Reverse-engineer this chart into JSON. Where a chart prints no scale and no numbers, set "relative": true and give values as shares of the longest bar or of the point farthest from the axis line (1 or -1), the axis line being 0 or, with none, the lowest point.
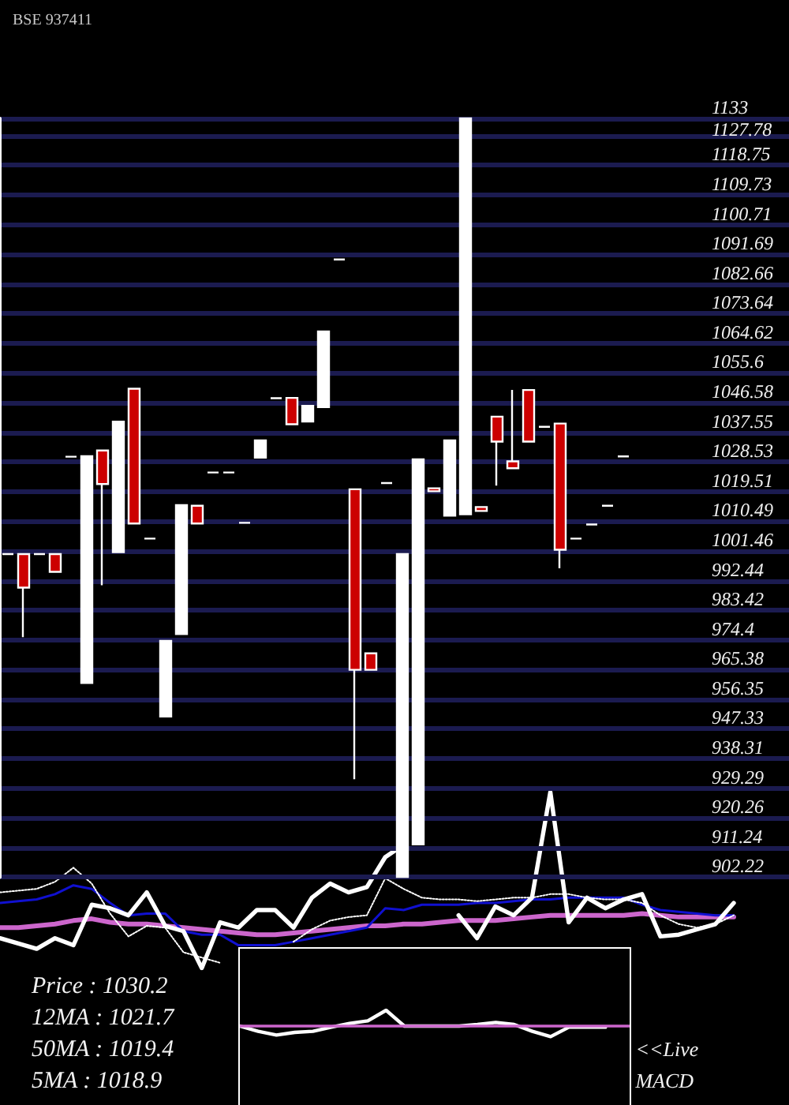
{
  "chart_data": [
    {
      "type": "candlestick",
      "title": "BSE 937411",
      "categories": [
        null,
        null,
        null,
        null,
        null,
        null,
        null,
        null,
        null,
        null,
        null,
        null,
        null,
        null,
        null,
        null,
        null,
        null,
        null,
        null,
        null,
        null,
        null,
        null,
        null,
        null,
        null,
        null,
        null,
        null,
        null,
        null,
        null,
        null,
        null,
        null,
        null,
        null,
        null,
        null,
        null,
        null,
        null,
        null,
        null,
        null,
        null,
        null,
        null,
        null
      ],
      "ohlc": [
        [
          1000.5,
          1000.5,
          1000.5,
          1000.5
        ],
        [
          1000.5,
          1000.5,
          975.2,
          990.3
        ],
        [
          1000.5,
          1000.5,
          1000.5,
          1000.5
        ],
        [
          1000.5,
          1000.5,
          995.1,
          995.1
        ],
        [
          1030.1,
          1030.1,
          1030.1,
          1030.1
        ],
        [
          961.3,
          1030.3,
          961.3,
          1030.3
        ],
        [
          1032.0,
          1032.0,
          991.0,
          1021.8
        ],
        [
          1001.1,
          1040.8,
          1001.1,
          1040.8
        ],
        [
          1050.8,
          1050.8,
          1009.8,
          1009.8
        ],
        [
          1005.2,
          1005.2,
          1005.2,
          1005.2
        ],
        [
          951.1,
          974.1,
          951.1,
          974.1
        ],
        [
          976.2,
          1015.4,
          976.2,
          1015.4
        ],
        [
          1015.2,
          1015.2,
          1009.8,
          1009.8
        ],
        [
          1025.3,
          1025.3,
          1025.3,
          1025.3
        ],
        [
          1025.3,
          1025.3,
          1025.3,
          1025.3
        ],
        [
          1010.0,
          1010.0,
          1010.0,
          1010.0
        ],
        [
          1029.8,
          1035.1,
          1029.8,
          1035.1
        ],
        [
          1047.9,
          1047.9,
          1047.9,
          1047.9
        ],
        [
          1048.0,
          1048.0,
          1040.0,
          1040.0
        ],
        [
          1040.8,
          1045.6,
          1040.8,
          1045.6
        ],
        [
          1045.2,
          1068.2,
          1045.2,
          1068.2
        ],
        [
          1090.1,
          1090.1,
          1090.1,
          1090.1
        ],
        [
          1020.2,
          1020.2,
          932.0,
          965.3
        ],
        [
          970.3,
          970.3,
          965.3,
          965.3
        ],
        [
          1022.1,
          1022.1,
          1022.1,
          1022.1
        ],
        [
          902.3,
          1000.5,
          902.3,
          1000.5
        ],
        [
          912.2,
          1029.3,
          912.2,
          1029.3
        ],
        [
          1020.5,
          1020.5,
          1019.6,
          1019.6
        ],
        [
          1012.2,
          1035.1,
          1012.2,
          1035.1
        ],
        [
          1012.6,
          1133,
          1012.6,
          1133
        ],
        [
          1014.8,
          1014.8,
          1013.6,
          1013.6
        ],
        [
          1042.3,
          1042.3,
          1021.3,
          1034.7
        ],
        [
          1028.7,
          1050.4,
          1026.6,
          1026.6
        ],
        [
          1050.4,
          1050.4,
          1034.7,
          1034.7
        ],
        [
          1039.2,
          1039.2,
          1039.2,
          1039.2
        ],
        [
          1040.2,
          1040.2,
          996.2,
          1001.8
        ],
        [
          1005.2,
          1005.2,
          1005.2,
          1005.2
        ],
        [
          1009.5,
          1009.5,
          1009.5,
          1009.5
        ],
        [
          1015.2,
          1015.2,
          1015.2,
          1015.2
        ],
        [
          1030.2,
          1030.2,
          1030.2,
          1030.2
        ],
        null,
        null,
        null,
        null,
        null,
        null,
        null,
        null,
        null,
        null
      ],
      "colors": [
        "#ffffff",
        "#cc0000",
        "#ffffff",
        "#cc0000",
        "#ffffff",
        "#ffffff",
        "#cc0000",
        "#ffffff",
        "#cc0000",
        "#ffffff",
        "#ffffff",
        "#ffffff",
        "#cc0000",
        "#ffffff",
        "#ffffff",
        "#ffffff",
        "#ffffff",
        "#ffffff",
        "#cc0000",
        "#ffffff",
        "#ffffff",
        "#ffffff",
        "#cc0000",
        "#cc0000",
        "#ffffff",
        "#ffffff",
        "#ffffff",
        "#cc0000",
        "#ffffff",
        "#ffffff",
        "#cc0000",
        "#cc0000",
        "#cc0000",
        "#cc0000",
        "#ffffff",
        "#cc0000",
        "#ffffff",
        "#ffffff",
        "#ffffff",
        "#ffffff",
        null,
        null,
        null,
        null,
        null,
        null,
        null,
        null,
        null,
        null
      ],
      "ylim": [
        902.22,
        1133
      ],
      "yticks": [
        902.22,
        911.24,
        920.26,
        929.29,
        938.31,
        947.33,
        956.35,
        965.38,
        974.4,
        983.42,
        992.44,
        1001.46,
        1010.49,
        1019.51,
        1028.53,
        1037.55,
        1046.58,
        1055.6,
        1064.62,
        1073.64,
        1082.66,
        1091.69,
        1100.71,
        1109.73,
        1118.75,
        1127.78,
        1133
      ],
      "grid": "y",
      "annotations": [
        "Price : 1030.2",
        "12MA : 1021.7",
        "50MA : 1019.4",
        "5MA : 1018.9"
      ]
    },
    {
      "type": "line",
      "relative": true,
      "categories": [
        null,
        null,
        null,
        null,
        null,
        null,
        null,
        null,
        null,
        null,
        null,
        null,
        null,
        null,
        null,
        null,
        null,
        null,
        null,
        null,
        null,
        null,
        null,
        null,
        null,
        null,
        null,
        null,
        null,
        null,
        null,
        null,
        null,
        null,
        null,
        null,
        null,
        null,
        null,
        null,
        null
      ],
      "series": [
        {
          "color": "#cc66cc",
          "values": [
            0.23,
            0.23,
            0.24,
            0.25,
            0.27,
            0.28,
            0.26,
            0.25,
            0.25,
            0.24,
            0.23,
            0.22,
            0.21,
            0.2,
            0.19,
            0.19,
            0.2,
            0.21,
            0.22,
            0.23,
            0.24,
            0.24,
            0.25,
            0.25,
            0.26,
            0.27,
            0.27,
            0.27,
            0.28,
            0.29,
            0.3,
            0.3,
            0.3,
            0.3,
            0.3,
            0.31,
            0.3,
            0.29,
            0.29,
            0.29,
            0.29
          ]
        },
        {
          "color": "#1010d0",
          "values": [
            0.37,
            0.38,
            0.39,
            0.42,
            0.47,
            0.45,
            0.37,
            0.3,
            0.31,
            0.31,
            0.21,
            0.19,
            0.19,
            0.13,
            0.13,
            0.13,
            0.15,
            0.17,
            0.19,
            0.21,
            0.23,
            0.34,
            0.33,
            0.36,
            0.36,
            0.36,
            0.37,
            0.37,
            0.38,
            0.39,
            0.39,
            0.4,
            0.4,
            0.4,
            0.4,
            0.36,
            0.33,
            0.32,
            0.31,
            0.3,
            0.3
          ]
        },
        {
          "color": "#ffffff",
          "line_style": "dotted",
          "values": [
            0.43,
            0.44,
            0.45,
            0.49,
            0.57,
            0.48,
            0.31,
            0.18,
            0.24,
            0.23,
            0.09,
            0.06,
            0.03,
            null,
            null,
            null,
            0.15,
            0.22,
            0.27,
            0.29,
            0.3,
            0.51,
            0.45,
            0.4,
            0.39,
            0.39,
            0.38,
            0.39,
            0.4,
            0.4,
            0.42,
            0.42,
            0.4,
            0.39,
            0.39,
            0.37,
            0.3,
            0.25,
            0.23,
            0.25,
            0.3
          ]
        },
        {
          "color": "#ffffff",
          "values": [
            0.17,
            0.14,
            0.11,
            0.17,
            0.13,
            0.36,
            0.34,
            0.3,
            0.43,
            0.24,
            0.21,
            0,
            0.26,
            0.23,
            0.33,
            0.33,
            0.23,
            0.4,
            0.48,
            0.43,
            0.46,
            0.63,
            0.7,
            null,
            null,
            0.3,
            0.17,
            0.35,
            0.3,
            0.4,
            1,
            0.26,
            0.4,
            0.34,
            0.39,
            0.42,
            0.18,
            0.19,
            0.22,
            0.25,
            0.37
          ]
        }
      ]
    },
    {
      "type": "line",
      "relative": true,
      "categories": [
        null,
        null,
        null,
        null,
        null,
        null,
        null,
        null,
        null,
        null,
        null,
        null,
        null,
        null,
        null,
        null,
        null,
        null,
        null,
        null,
        null
      ],
      "series": [
        {
          "color": "#ffffff",
          "values": [
            0,
            -0.33,
            -0.57,
            -0.4,
            -0.33,
            -0.07,
            0.17,
            0.33,
            1,
            0,
            0,
            0,
            0,
            0.1,
            0.23,
            0.1,
            -0.33,
            -0.67,
            -0.07,
            -0.07,
            -0.07
          ]
        }
      ],
      "ref_lines": [
        {
          "axis": "y",
          "value": 0,
          "color": "#cc66cc"
        }
      ],
      "annotations": [
        "<<Live MACD"
      ]
    }
  ]
}
